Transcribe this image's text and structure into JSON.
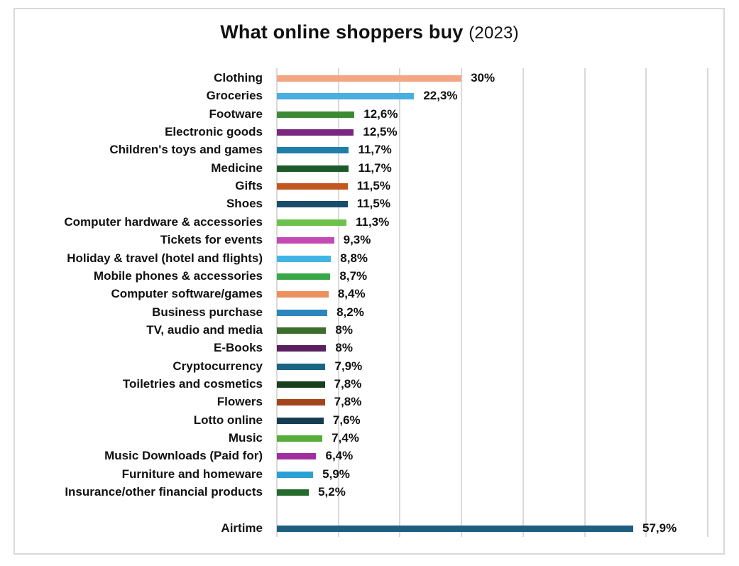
{
  "chart_data": {
    "type": "bar",
    "orientation": "horizontal",
    "title": "What online shoppers buy",
    "subtitle": "(2023)",
    "xlabel": "",
    "ylabel": "",
    "xlim": [
      0,
      70
    ],
    "grid": true,
    "grid_step": 10,
    "legend": null,
    "categories": [
      "Clothing",
      "Groceries",
      "Footware",
      "Electronic goods",
      "Children's toys and games",
      "Medicine",
      "Gifts",
      "Shoes",
      "Computer hardware & accessories",
      "Tickets for events",
      "Holiday & travel (hotel and flights)",
      "Mobile phones & accessories",
      "Computer software/games",
      "Business purchase",
      "TV, audio and media",
      "E-Books",
      "Cryptocurrency",
      "Toiletries and cosmetics",
      "Flowers",
      "Lotto online",
      "Music",
      "Music Downloads (Paid for)",
      "Furniture and homeware",
      "Insurance/other financial products",
      "Airtime"
    ],
    "values": [
      30,
      22.3,
      12.6,
      12.5,
      11.7,
      11.7,
      11.5,
      11.5,
      11.3,
      9.3,
      8.8,
      8.7,
      8.4,
      8.2,
      8,
      8,
      7.9,
      7.8,
      7.8,
      7.6,
      7.4,
      6.4,
      5.9,
      5.2,
      57.9
    ],
    "value_labels": [
      "30%",
      "22,3%",
      "12,6%",
      "12,5%",
      "11,7%",
      "11,7%",
      "11,5%",
      "11,5%",
      "11,3%",
      "9,3%",
      "8,8%",
      "8,7%",
      "8,4%",
      "8,2%",
      "8%",
      "8%",
      "7,9%",
      "7,8%",
      "7,8%",
      "7,6%",
      "7,4%",
      "6,4%",
      "5,9%",
      "5,2%",
      "57,9%"
    ],
    "colors": [
      "#f4a582",
      "#4aaee0",
      "#3e8a34",
      "#7b2680",
      "#1f7fa8",
      "#1d5a2a",
      "#c4571f",
      "#1a4d6a",
      "#6cc24a",
      "#c449b5",
      "#41b6e6",
      "#38a848",
      "#ee8f60",
      "#2a86bd",
      "#3b6e2c",
      "#5a1f5e",
      "#1b6584",
      "#1a3e1e",
      "#a3441a",
      "#143d52",
      "#55ad3a",
      "#a02e9e",
      "#2aa0d4",
      "#246b2e",
      "#1e5f80"
    ],
    "unit": "%"
  },
  "title": {
    "main": "What online shoppers buy",
    "sub": "(2023)"
  }
}
